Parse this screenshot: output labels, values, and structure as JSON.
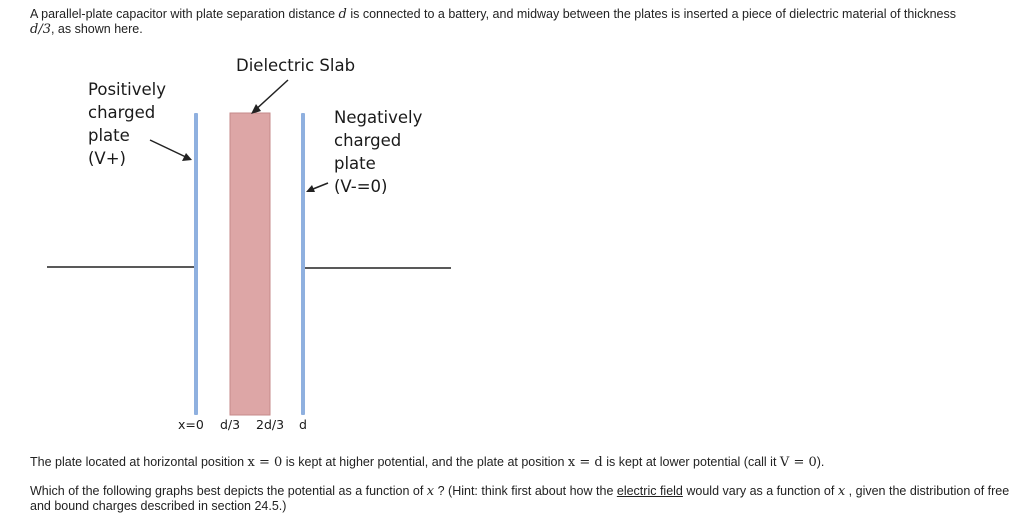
{
  "problem": {
    "intro_before": "A parallel-plate capacitor with plate separation distance",
    "intro_var": "d",
    "intro_middle": "is connected to a battery, and midway between the plates is inserted a piece of dielectric material of thickness",
    "intro_thickness": "d/3",
    "intro_after": ", as shown here.",
    "p2_before": "The plate located at horizontal position",
    "p2_math1": "x = 0",
    "p2_mid": "is kept at higher potential, and the plate at position",
    "p2_math2": "x = d",
    "p2_mid2": "is kept at lower potential (call it",
    "p2_math3": "V = 0",
    "p2_after": ").",
    "q_before": "Which of the following graphs best depicts the potential as a function of",
    "q_var": "x",
    "q_mid": "? (Hint: think first about how the",
    "q_link": "electric field",
    "q_mid2": "would vary as a function of",
    "q_var2": "x",
    "q_after": ", given the distribution of free and bound charges described in section 24.5.)"
  },
  "diagram": {
    "slab_label": "Dielectric Slab",
    "positive_plate_lines": [
      "Positively",
      "charged",
      "plate"
    ],
    "positive_potential": "(V+)",
    "negative_plate_lines": [
      "Negatively",
      "charged",
      "plate"
    ],
    "negative_potential": "(V-=0)",
    "x_labels": [
      "x=0",
      "d/3",
      "2d/3",
      "d"
    ],
    "colors": {
      "plate": "#8fb0df",
      "slab_fill": "#dda6a6",
      "slab_edge": "#c58a8a",
      "wire": "#222222"
    }
  }
}
